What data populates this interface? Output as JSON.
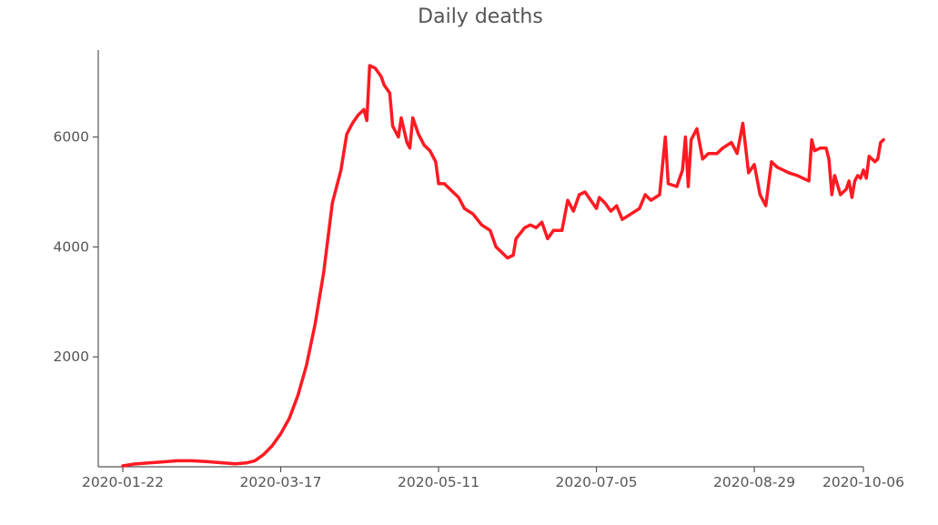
{
  "chart_data": {
    "type": "line",
    "title": "Daily deaths",
    "xlabel": "",
    "ylabel": "",
    "x_start": "2020-01-22",
    "x_end": "2020-10-06",
    "xlim": [
      "2020-01-22",
      "2020-10-06"
    ],
    "ylim": [
      0,
      7500
    ],
    "x_ticks": [
      "2020-01-22",
      "2020-03-17",
      "2020-05-11",
      "2020-07-05",
      "2020-08-29",
      "2020-10-06"
    ],
    "y_ticks": [
      2000,
      4000,
      6000
    ],
    "legend": "none",
    "grid": false,
    "series": [
      {
        "color": "#ff1a22",
        "points": [
          [
            "2020-01-22",
            17
          ],
          [
            "2020-01-26",
            50
          ],
          [
            "2020-01-31",
            70
          ],
          [
            "2020-02-05",
            90
          ],
          [
            "2020-02-10",
            110
          ],
          [
            "2020-02-15",
            110
          ],
          [
            "2020-02-20",
            95
          ],
          [
            "2020-02-25",
            75
          ],
          [
            "2020-03-01",
            55
          ],
          [
            "2020-03-05",
            70
          ],
          [
            "2020-03-08",
            110
          ],
          [
            "2020-03-11",
            220
          ],
          [
            "2020-03-14",
            380
          ],
          [
            "2020-03-17",
            600
          ],
          [
            "2020-03-20",
            880
          ],
          [
            "2020-03-23",
            1300
          ],
          [
            "2020-03-26",
            1850
          ],
          [
            "2020-03-29",
            2600
          ],
          [
            "2020-04-01",
            3550
          ],
          [
            "2020-04-04",
            4800
          ],
          [
            "2020-04-07",
            5400
          ],
          [
            "2020-04-09",
            6050
          ],
          [
            "2020-04-11",
            6250
          ],
          [
            "2020-04-13",
            6400
          ],
          [
            "2020-04-15",
            6500
          ],
          [
            "2020-04-16",
            6300
          ],
          [
            "2020-04-17",
            7300
          ],
          [
            "2020-04-19",
            7250
          ],
          [
            "2020-04-21",
            7100
          ],
          [
            "2020-04-22",
            6950
          ],
          [
            "2020-04-24",
            6800
          ],
          [
            "2020-04-25",
            6200
          ],
          [
            "2020-04-27",
            6000
          ],
          [
            "2020-04-28",
            6350
          ],
          [
            "2020-04-30",
            5900
          ],
          [
            "2020-05-01",
            5800
          ],
          [
            "2020-05-02",
            6350
          ],
          [
            "2020-05-04",
            6050
          ],
          [
            "2020-05-06",
            5850
          ],
          [
            "2020-05-08",
            5750
          ],
          [
            "2020-05-10",
            5550
          ],
          [
            "2020-05-11",
            5150
          ],
          [
            "2020-05-13",
            5150
          ],
          [
            "2020-05-15",
            5050
          ],
          [
            "2020-05-18",
            4900
          ],
          [
            "2020-05-20",
            4700
          ],
          [
            "2020-05-23",
            4600
          ],
          [
            "2020-05-26",
            4400
          ],
          [
            "2020-05-29",
            4300
          ],
          [
            "2020-05-31",
            4000
          ],
          [
            "2020-06-02",
            3900
          ],
          [
            "2020-06-04",
            3800
          ],
          [
            "2020-06-06",
            3850
          ],
          [
            "2020-06-07",
            4150
          ],
          [
            "2020-06-10",
            4350
          ],
          [
            "2020-06-12",
            4400
          ],
          [
            "2020-06-14",
            4350
          ],
          [
            "2020-06-16",
            4450
          ],
          [
            "2020-06-18",
            4150
          ],
          [
            "2020-06-20",
            4300
          ],
          [
            "2020-06-23",
            4300
          ],
          [
            "2020-06-25",
            4850
          ],
          [
            "2020-06-27",
            4650
          ],
          [
            "2020-06-29",
            4950
          ],
          [
            "2020-07-01",
            5000
          ],
          [
            "2020-07-03",
            4850
          ],
          [
            "2020-07-05",
            4700
          ],
          [
            "2020-07-06",
            4900
          ],
          [
            "2020-07-08",
            4800
          ],
          [
            "2020-07-10",
            4650
          ],
          [
            "2020-07-12",
            4750
          ],
          [
            "2020-07-14",
            4500
          ],
          [
            "2020-07-17",
            4600
          ],
          [
            "2020-07-20",
            4700
          ],
          [
            "2020-07-22",
            4950
          ],
          [
            "2020-07-24",
            4850
          ],
          [
            "2020-07-27",
            4950
          ],
          [
            "2020-07-29",
            6000
          ],
          [
            "2020-07-30",
            5150
          ],
          [
            "2020-08-02",
            5100
          ],
          [
            "2020-08-04",
            5400
          ],
          [
            "2020-08-05",
            6000
          ],
          [
            "2020-08-06",
            5100
          ],
          [
            "2020-08-07",
            5950
          ],
          [
            "2020-08-09",
            6150
          ],
          [
            "2020-08-11",
            5600
          ],
          [
            "2020-08-13",
            5700
          ],
          [
            "2020-08-16",
            5700
          ],
          [
            "2020-08-18",
            5800
          ],
          [
            "2020-08-21",
            5900
          ],
          [
            "2020-08-23",
            5700
          ],
          [
            "2020-08-25",
            6250
          ],
          [
            "2020-08-27",
            5350
          ],
          [
            "2020-08-29",
            5500
          ],
          [
            "2020-08-31",
            4950
          ],
          [
            "2020-09-02",
            4750
          ],
          [
            "2020-09-04",
            5550
          ],
          [
            "2020-09-06",
            5450
          ],
          [
            "2020-09-08",
            5400
          ],
          [
            "2020-09-10",
            5350
          ],
          [
            "2020-09-13",
            5300
          ],
          [
            "2020-09-15",
            5250
          ],
          [
            "2020-09-17",
            5200
          ],
          [
            "2020-09-18",
            5950
          ],
          [
            "2020-09-19",
            5750
          ],
          [
            "2020-09-21",
            5800
          ],
          [
            "2020-09-23",
            5800
          ],
          [
            "2020-09-24",
            5600
          ],
          [
            "2020-09-25",
            4950
          ],
          [
            "2020-09-26",
            5300
          ],
          [
            "2020-09-28",
            4950
          ],
          [
            "2020-09-30",
            5050
          ],
          [
            "2020-10-01",
            5200
          ],
          [
            "2020-10-02",
            4900
          ],
          [
            "2020-10-03",
            5200
          ],
          [
            "2020-10-04",
            5300
          ],
          [
            "2020-10-05",
            5250
          ],
          [
            "2020-10-06",
            5400
          ],
          [
            "2020-10-07",
            5250
          ],
          [
            "2020-10-08",
            5650
          ],
          [
            "2020-10-10",
            5550
          ],
          [
            "2020-10-11",
            5600
          ],
          [
            "2020-10-12",
            5900
          ],
          [
            "2020-10-13",
            5950
          ]
        ]
      }
    ]
  }
}
